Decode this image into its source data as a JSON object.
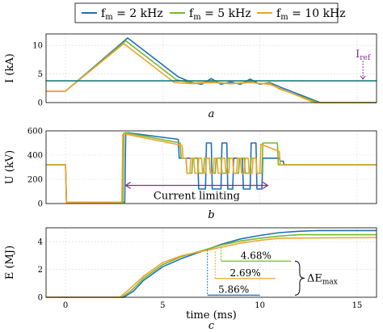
{
  "legend": {
    "entries": [
      {
        "name": "f_m = 2 kHz",
        "base": "f",
        "sub": "m",
        "rest": " = 2 kHz",
        "color": "#1f6fb8"
      },
      {
        "name": "f_m = 5 kHz",
        "base": "f",
        "sub": "m",
        "rest": " = 5 kHz",
        "color": "#77b82a"
      },
      {
        "name": "f_m = 10 kHz",
        "base": "f",
        "sub": "m",
        "rest": " = 10 kHz",
        "color": "#f0a22e"
      }
    ]
  },
  "colors": {
    "blue": "#1f6fb8",
    "green": "#77b82a",
    "orange": "#f0a22e",
    "teal": "#1e7d7d",
    "purple": "#8b2a8b"
  },
  "chart_data": [
    {
      "type": "line",
      "panel": "a",
      "panel_label": "a",
      "ylabel": "I (kA)",
      "xlim": [
        -1,
        16
      ],
      "ylim": [
        0,
        12
      ],
      "yticks": [
        "0",
        "5",
        "10"
      ],
      "xtick_values": [
        0,
        5,
        10,
        15
      ],
      "series": [
        {
          "name": "f_m = 2 kHz",
          "color": "#1f6fb8",
          "x": [
            -1,
            0,
            3.2,
            5.8,
            6.5,
            7.0,
            7.5,
            8.0,
            8.5,
            9.0,
            9.5,
            10.0,
            10.5,
            11.2,
            13.1,
            16
          ],
          "y": [
            2,
            2,
            11.3,
            4.5,
            3.5,
            3.2,
            4.2,
            3.2,
            3.6,
            3.2,
            4.1,
            3.2,
            3.5,
            2.5,
            0,
            0
          ]
        },
        {
          "name": "f_m = 5 kHz",
          "color": "#77b82a",
          "x": [
            -1,
            0,
            3.1,
            5.7,
            6.5,
            7.5,
            8.5,
            9.5,
            10.0,
            10.5,
            11.0,
            13.0,
            16
          ],
          "y": [
            2,
            2,
            10.8,
            4.0,
            3.4,
            3.6,
            3.3,
            3.6,
            3.3,
            3.4,
            2.4,
            0,
            0
          ]
        },
        {
          "name": "f_m = 10 kHz",
          "color": "#f0a22e",
          "x": [
            -1,
            0,
            3.0,
            5.6,
            6.5,
            7.5,
            8.5,
            9.5,
            10.5,
            12.8,
            16
          ],
          "y": [
            2,
            2,
            10.3,
            3.5,
            3.3,
            3.5,
            3.3,
            3.5,
            3.2,
            0,
            0
          ]
        },
        {
          "name": "I_ref",
          "color": "#1e7d7d",
          "x": [
            -1,
            16
          ],
          "y": [
            3.8,
            3.8
          ]
        }
      ],
      "annotation": {
        "base": "I",
        "sub": "ref",
        "x": 15.3,
        "y_from": 7.6,
        "y_to": 4.1
      }
    },
    {
      "type": "line",
      "panel": "b",
      "panel_label": "b",
      "ylabel": "U (kV)",
      "xlim": [
        -1,
        16
      ],
      "ylim": [
        0,
        600
      ],
      "yticks": [
        "0",
        "200",
        "400",
        "600"
      ],
      "xtick_values": [
        0,
        5,
        10,
        15
      ],
      "series": [
        {
          "name": "f_m = 2 kHz",
          "color": "#1f6fb8",
          "x": [
            -1,
            0,
            0.05,
            3.05,
            3.1,
            3.2,
            5.8,
            5.85,
            6.8,
            6.85,
            7.2,
            7.25,
            7.5,
            7.55,
            8.0,
            8.05,
            8.3,
            8.35,
            8.6,
            8.65,
            9.1,
            9.15,
            9.5,
            9.55,
            9.8,
            9.85,
            10.1,
            10.15,
            11.0,
            11.05,
            11.2,
            11.25,
            16
          ],
          "y": [
            320,
            320,
            10,
            10,
            580,
            585,
            530,
            375,
            375,
            120,
            120,
            500,
            500,
            120,
            120,
            500,
            500,
            120,
            120,
            375,
            375,
            120,
            120,
            500,
            500,
            120,
            120,
            375,
            375,
            350,
            350,
            320,
            320
          ]
        },
        {
          "name": "f_m = 5 kHz",
          "color": "#77b82a",
          "x": [
            -1,
            0,
            0.05,
            2.95,
            3.0,
            3.1,
            5.9,
            5.95,
            6.2,
            6.25,
            6.5,
            6.55,
            6.8,
            6.85,
            7.1,
            7.15,
            7.4,
            7.45,
            7.7,
            7.75,
            8.0,
            8.05,
            8.3,
            8.35,
            8.6,
            8.65,
            8.9,
            8.95,
            9.2,
            9.25,
            9.5,
            9.55,
            9.8,
            9.85,
            10.1,
            10.15,
            10.9,
            10.95,
            16
          ],
          "y": [
            320,
            320,
            10,
            10,
            580,
            585,
            500,
            375,
            375,
            250,
            250,
            375,
            375,
            250,
            250,
            375,
            375,
            250,
            250,
            375,
            375,
            250,
            250,
            375,
            375,
            250,
            250,
            375,
            375,
            250,
            250,
            375,
            375,
            250,
            250,
            500,
            500,
            320,
            320
          ]
        },
        {
          "name": "f_m = 10 kHz",
          "color": "#f0a22e",
          "x": [
            -1,
            0,
            0.05,
            2.9,
            2.95,
            3.05,
            6.0,
            6.05,
            6.2,
            6.25,
            6.4,
            6.45,
            6.6,
            6.65,
            6.8,
            6.85,
            7.0,
            7.05,
            7.2,
            7.25,
            7.4,
            7.45,
            7.6,
            7.65,
            7.8,
            7.85,
            8.0,
            8.05,
            8.2,
            8.25,
            8.4,
            8.45,
            8.6,
            8.65,
            8.8,
            8.85,
            9.0,
            9.05,
            9.2,
            9.25,
            9.4,
            9.45,
            9.6,
            9.65,
            9.8,
            9.85,
            10.0,
            10.05,
            11.0,
            11.05,
            16
          ],
          "y": [
            320,
            320,
            10,
            10,
            570,
            575,
            480,
            375,
            375,
            250,
            250,
            375,
            375,
            250,
            250,
            375,
            375,
            250,
            250,
            375,
            375,
            250,
            250,
            375,
            375,
            250,
            250,
            375,
            375,
            250,
            250,
            375,
            375,
            250,
            250,
            375,
            375,
            250,
            250,
            375,
            375,
            250,
            250,
            375,
            375,
            250,
            250,
            490,
            430,
            320,
            320
          ]
        }
      ],
      "annotation": {
        "text": "Current limiting",
        "x_from": 3.1,
        "x_to": 10.4,
        "y": 150
      }
    },
    {
      "type": "line",
      "panel": "c",
      "panel_label": "c",
      "xlabel": "time (ms)",
      "ylabel": "E (MJ)",
      "xlim": [
        -1,
        16
      ],
      "ylim": [
        0,
        5
      ],
      "yticks": [
        "0",
        "2",
        "4"
      ],
      "xtick_values": [
        0,
        5,
        10,
        15
      ],
      "xticks": [
        "0",
        "5",
        "10",
        "15"
      ],
      "series": [
        {
          "name": "f_m = 2 kHz",
          "color": "#1f6fb8",
          "x": [
            -1,
            3.0,
            3.5,
            4.0,
            5.0,
            6.0,
            7.0,
            8.0,
            9.0,
            10.0,
            11.0,
            12.0,
            13.0,
            16
          ],
          "y": [
            0,
            0,
            0.45,
            1.2,
            2.2,
            2.8,
            3.3,
            3.8,
            4.2,
            4.45,
            4.65,
            4.75,
            4.8,
            4.8
          ]
        },
        {
          "name": "f_m = 5 kHz",
          "color": "#77b82a",
          "x": [
            -1,
            2.9,
            3.4,
            4.0,
            5.0,
            6.0,
            7.0,
            8.0,
            9.0,
            10.0,
            11.0,
            12.0,
            16
          ],
          "y": [
            0,
            0,
            0.5,
            1.35,
            2.35,
            2.95,
            3.35,
            3.75,
            4.05,
            4.25,
            4.4,
            4.5,
            4.5
          ]
        },
        {
          "name": "f_m = 10 kHz",
          "color": "#f0a22e",
          "x": [
            -1,
            2.8,
            3.3,
            4.0,
            5.0,
            6.0,
            7.0,
            8.0,
            9.0,
            10.0,
            11.0,
            16
          ],
          "y": [
            0,
            0,
            0.6,
            1.5,
            2.5,
            3.0,
            3.3,
            3.6,
            3.9,
            4.1,
            4.25,
            4.3
          ]
        }
      ],
      "annotations": [
        {
          "text": "4.68%",
          "color": "#77b82a",
          "x_from": 8.0,
          "x_to": 11.6,
          "y_bar": 2.6,
          "x_line": 8.0,
          "y_top": 3.6
        },
        {
          "text": "2.69%",
          "color": "#f0a22e",
          "x_from": 7.7,
          "x_to": 10.8,
          "y_bar": 1.35,
          "x_line": 7.7,
          "y_top": 3.3
        },
        {
          "text": "5.86%",
          "color": "#1f6fb8",
          "x_from": 7.3,
          "x_to": 10.0,
          "y_bar": 0.15,
          "x_line": 7.3,
          "y_top": 3.4
        }
      ],
      "brace_label": {
        "base": "ΔE",
        "sub": "max"
      }
    }
  ]
}
